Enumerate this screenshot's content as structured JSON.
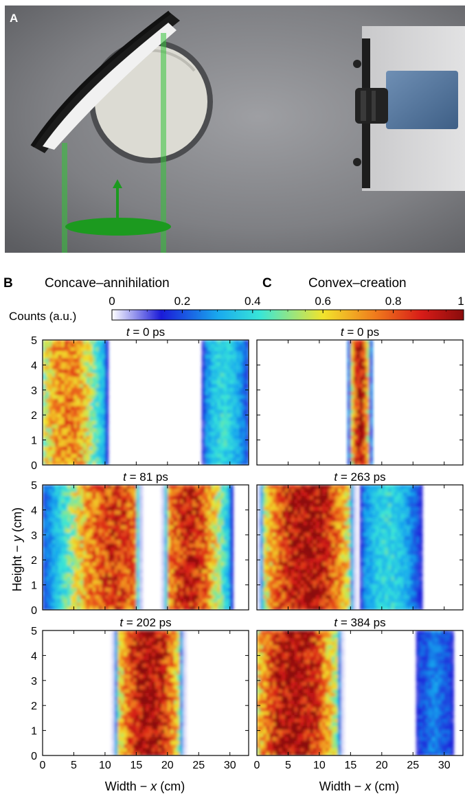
{
  "figure": {
    "panel_a_label": "A",
    "panel_b_label": "B",
    "panel_c_label": "C",
    "col_b_title": "Concave–annihilation",
    "col_c_title": "Convex–creation",
    "colorbar_label": "Counts (a.u.)",
    "colorbar_ticks": [
      "0",
      "0.2",
      "0.4",
      "0.6",
      "0.8",
      "1"
    ],
    "y_label_prefix": "Height − ",
    "y_label_var": "y",
    "y_label_unit": " (cm)",
    "x_label_prefix": "Width − ",
    "x_label_var": "x",
    "x_label_unit": " (cm)",
    "x_ticks": [
      "0",
      "5",
      "10",
      "15",
      "20",
      "25",
      "30"
    ],
    "y_ticks": [
      "0",
      "1",
      "2",
      "3",
      "4",
      "5"
    ],
    "t_var": "t",
    "eq": " = ",
    "panels": [
      {
        "time": "0 ps"
      },
      {
        "time": "0 ps"
      },
      {
        "time": "81 ps"
      },
      {
        "time": "263 ps"
      },
      {
        "time": "202 ps"
      },
      {
        "time": "384 ps"
      }
    ]
  },
  "colors": {
    "colormap": [
      "#ffffff",
      "#1a1ad8",
      "#19a8ee",
      "#38e6d8",
      "#f2e42c",
      "#f07a1c",
      "#d81c18",
      "#8a0c0c"
    ]
  },
  "chart_data": [
    {
      "type": "heatmap",
      "panel": "B",
      "time": "0 ps",
      "xlim": [
        0,
        33
      ],
      "ylim": [
        0,
        5
      ],
      "bands": [
        {
          "x_range": [
            0,
            10
          ],
          "peak": 0.75,
          "center_x": 4
        },
        {
          "x_range": [
            26,
            33
          ],
          "peak": 0.4,
          "center_x": 29
        }
      ]
    },
    {
      "type": "heatmap",
      "panel": "C",
      "time": "0 ps",
      "xlim": [
        0,
        33
      ],
      "ylim": [
        0,
        5
      ],
      "bands": [
        {
          "x_range": [
            15,
            18
          ],
          "peak": 0.95,
          "center_x": 16.5
        }
      ]
    },
    {
      "type": "heatmap",
      "panel": "B",
      "time": "81 ps",
      "xlim": [
        0,
        33
      ],
      "ylim": [
        0,
        5
      ],
      "bands": [
        {
          "x_range": [
            0,
            15
          ],
          "peak": 0.85,
          "center_x": 11.5
        },
        {
          "x_range": [
            20,
            30
          ],
          "peak": 0.9,
          "center_x": 23.5
        }
      ]
    },
    {
      "type": "heatmap",
      "panel": "C",
      "time": "263 ps",
      "xlim": [
        0,
        33
      ],
      "ylim": [
        0,
        5
      ],
      "bands": [
        {
          "x_range": [
            1,
            15
          ],
          "peak": 1.0,
          "center_x": 8
        },
        {
          "x_range": [
            17,
            26
          ],
          "peak": 0.4,
          "center_x": 21
        }
      ]
    },
    {
      "type": "heatmap",
      "panel": "B",
      "time": "202 ps",
      "xlim": [
        0,
        33
      ],
      "ylim": [
        0,
        5
      ],
      "bands": [
        {
          "x_range": [
            12,
            22
          ],
          "peak": 1.0,
          "center_x": 17
        }
      ]
    },
    {
      "type": "heatmap",
      "panel": "C",
      "time": "384 ps",
      "xlim": [
        0,
        33
      ],
      "ylim": [
        0,
        5
      ],
      "bands": [
        {
          "x_range": [
            0,
            13
          ],
          "peak": 1.0,
          "center_x": 6
        },
        {
          "x_range": [
            26,
            31
          ],
          "peak": 0.25,
          "center_x": 28.5
        }
      ]
    }
  ]
}
